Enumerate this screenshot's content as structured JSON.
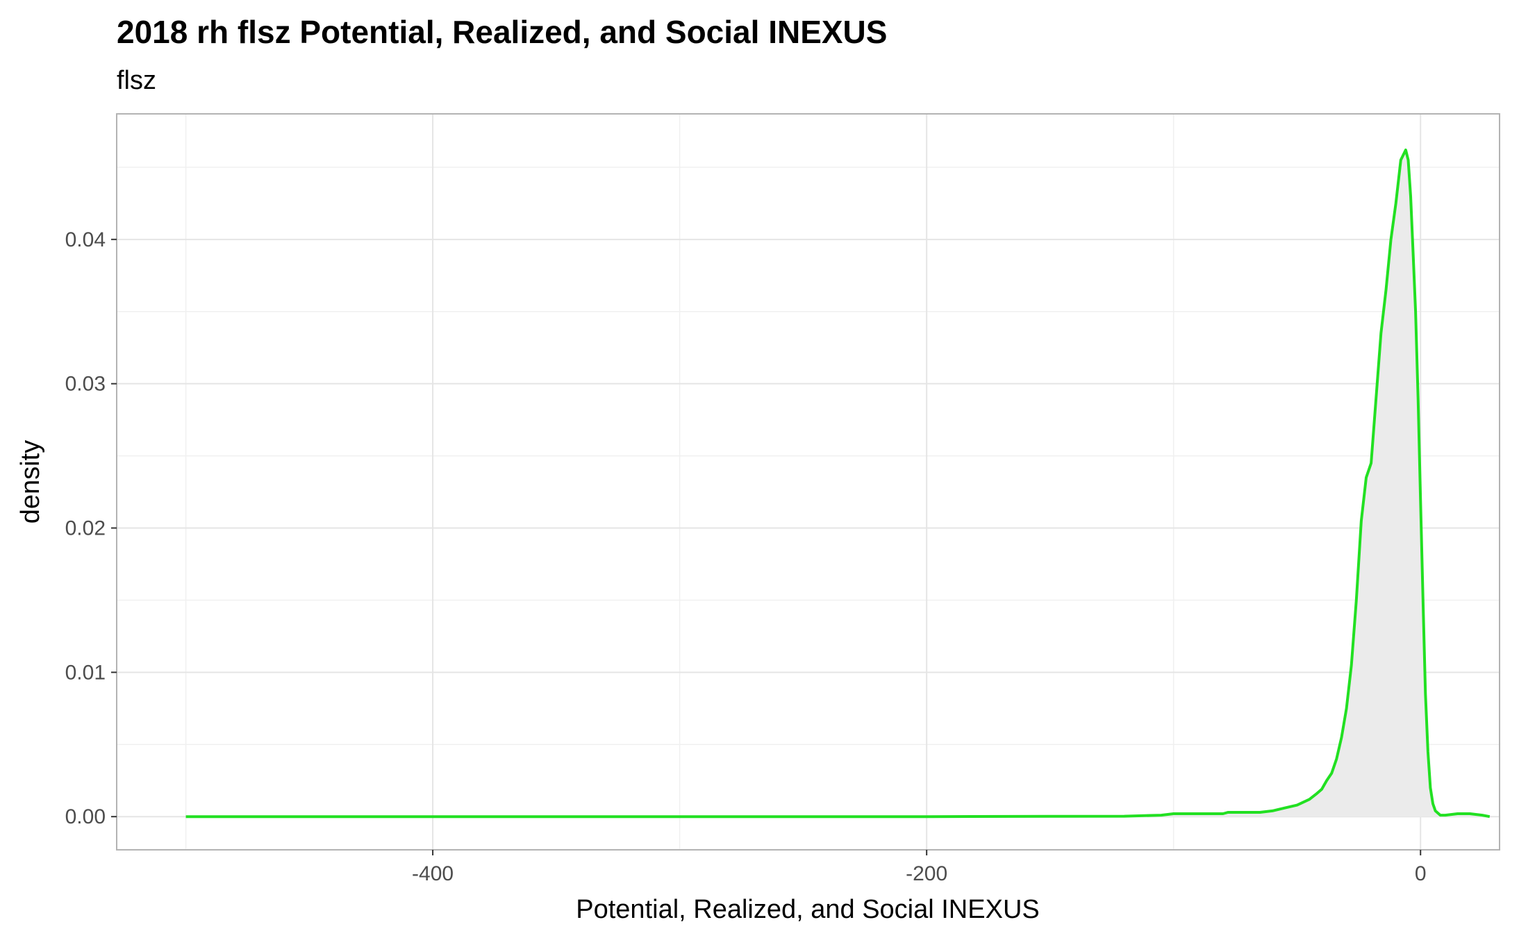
{
  "chart_data": {
    "type": "area",
    "title": "2018 rh flsz Potential, Realized, and Social INEXUS",
    "subtitle": "flsz",
    "xlabel": "Potential, Realized, and Social INEXUS",
    "ylabel": "density",
    "xlim": [
      -528,
      32
    ],
    "ylim": [
      -0.0023,
      0.0487
    ],
    "x_ticks": [
      -400,
      -200,
      0
    ],
    "x_tick_labels": [
      "-400",
      "-200",
      "0"
    ],
    "x_minor_ticks": [
      -500,
      -300,
      -100
    ],
    "y_ticks": [
      0,
      0.01,
      0.02,
      0.03,
      0.04
    ],
    "y_tick_labels": [
      "0.00",
      "0.01",
      "0.02",
      "0.03",
      "0.04"
    ],
    "y_minor_ticks": [
      0.005,
      0.015,
      0.025,
      0.035,
      0.045
    ],
    "grid": true,
    "colors": {
      "line": "#22e022",
      "fill": "#ebebeb",
      "grid": "#e5e5e5",
      "panel_border": "#b3b3b3"
    },
    "series": [
      {
        "x": [
          -500,
          -400,
          -300,
          -200,
          -150,
          -120,
          -105,
          -100,
          -90,
          -80,
          -78,
          -76,
          -70,
          -65,
          -60,
          -55,
          -50,
          -45,
          -42,
          -40,
          -38,
          -36,
          -34,
          -32,
          -30,
          -28,
          -26,
          -24,
          -22,
          -20,
          -18,
          -16,
          -14,
          -12,
          -10,
          -8,
          -6,
          -5,
          -4,
          -3,
          -2,
          -1,
          0,
          1,
          2,
          3,
          4,
          5,
          6,
          8,
          10,
          15,
          20,
          25,
          28
        ],
        "y": [
          0,
          0,
          0,
          0,
          2e-05,
          3e-05,
          0.0001,
          0.0002,
          0.0002,
          0.0002,
          0.0003,
          0.0003,
          0.0003,
          0.0003,
          0.0004,
          0.0006,
          0.0008,
          0.0012,
          0.0016,
          0.0019,
          0.0025,
          0.003,
          0.004,
          0.0055,
          0.0075,
          0.0105,
          0.015,
          0.0205,
          0.0235,
          0.0245,
          0.029,
          0.0335,
          0.0365,
          0.04,
          0.0425,
          0.0455,
          0.0462,
          0.0455,
          0.043,
          0.039,
          0.035,
          0.029,
          0.022,
          0.015,
          0.0085,
          0.0045,
          0.002,
          0.0009,
          0.0004,
          0.0001,
          0.0001,
          0.0002,
          0.0002,
          0.0001,
          0.0
        ]
      }
    ]
  }
}
